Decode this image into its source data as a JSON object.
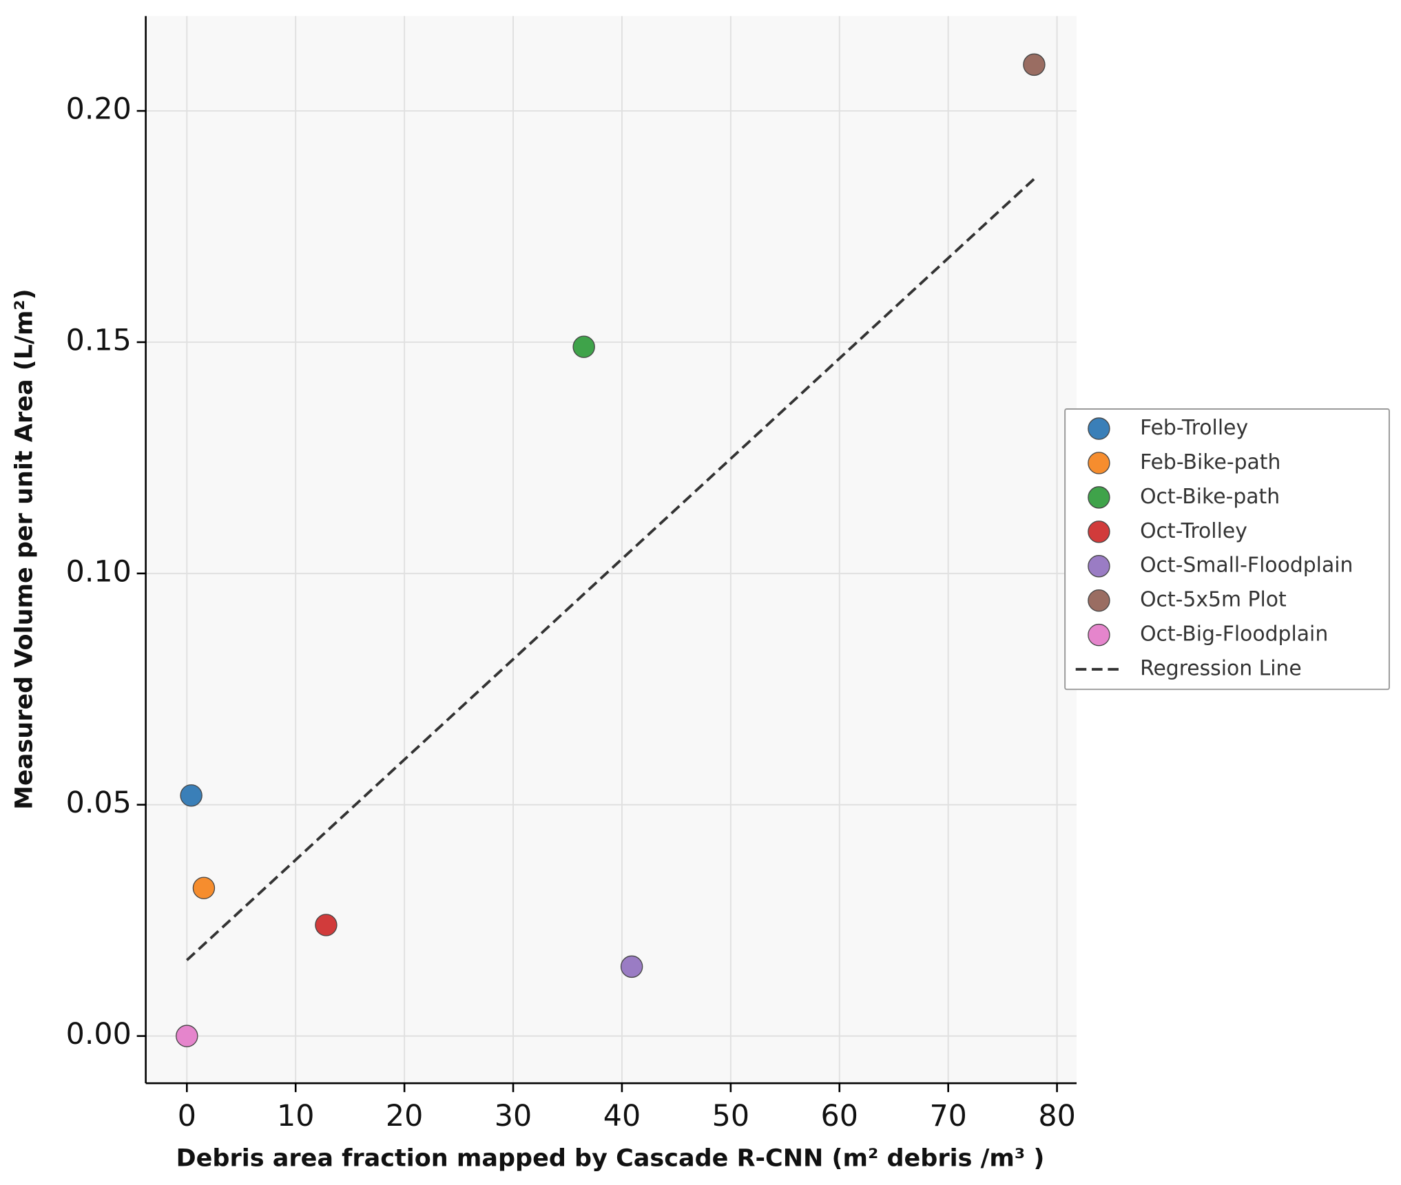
{
  "chart_data": {
    "type": "scatter",
    "x_label": "Debris area fraction mapped by Cascade R-CNN (m² debris /m³ )",
    "y_label": "Measured Volume per unit Area (L/m²)",
    "xlim": [
      -3.78,
      81.8
    ],
    "ylim": [
      -0.0102,
      0.2205
    ],
    "xticks": [
      0,
      10,
      20,
      30,
      40,
      50,
      60,
      70,
      80
    ],
    "yticks": [
      {
        "value": 0,
        "label": "0.00"
      },
      {
        "value": 0.05,
        "label": "0.05"
      },
      {
        "value": 0.1,
        "label": "0.10"
      },
      {
        "value": 0.15,
        "label": "0.15"
      },
      {
        "value": 0.2,
        "label": "0.20"
      }
    ],
    "grid": true,
    "legend": "right",
    "series": [
      {
        "name": "Feb-Trolley",
        "color": "#3a7fb8",
        "style": "marker",
        "x": [
          0.4
        ],
        "values": [
          0.052
        ]
      },
      {
        "name": "Feb-Bike-path",
        "color": "#f68d2e",
        "style": "marker",
        "x": [
          1.56
        ],
        "values": [
          0.032
        ]
      },
      {
        "name": "Oct-Bike-path",
        "color": "#3fa34a",
        "style": "marker",
        "x": [
          36.5
        ],
        "values": [
          0.149
        ]
      },
      {
        "name": "Oct-Trolley",
        "color": "#d13b3b",
        "style": "marker",
        "x": [
          12.8
        ],
        "values": [
          0.024
        ]
      },
      {
        "name": "Oct-Small-Floodplain",
        "color": "#9a7cc4",
        "style": "marker",
        "x": [
          40.9
        ],
        "values": [
          0.015
        ]
      },
      {
        "name": "Oct-5x5m Plot",
        "color": "#9a6d62",
        "style": "marker",
        "x": [
          77.9
        ],
        "values": [
          0.21
        ]
      },
      {
        "name": "Oct-Big-Floodplain",
        "color": "#e585cc",
        "style": "marker",
        "x": [
          0
        ],
        "values": [
          0
        ]
      },
      {
        "name": "Regression Line",
        "color": "#333333",
        "style": "dashed",
        "x": [
          0,
          77.9
        ],
        "values": [
          0.0164,
          0.1853
        ]
      }
    ]
  }
}
